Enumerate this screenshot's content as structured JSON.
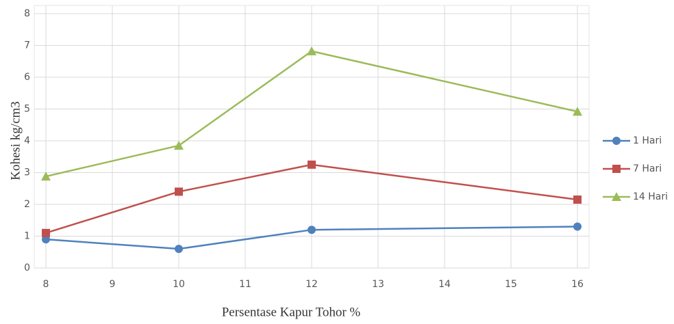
{
  "chart_data": {
    "type": "line",
    "x_label": "Persentase Kapur Tohor %",
    "y_label": "Kohesi kg/cm3",
    "x": [
      8,
      10,
      12,
      16
    ],
    "series": [
      {
        "name": "1 Hari",
        "color": "#4f81bd",
        "marker": "circle",
        "values": [
          0.9,
          0.6,
          1.2,
          1.3
        ]
      },
      {
        "name": "7 Hari",
        "color": "#c0504d",
        "marker": "square",
        "values": [
          1.1,
          2.4,
          3.25,
          2.15
        ]
      },
      {
        "name": "14 Hari",
        "color": "#9bbb59",
        "marker": "triangle",
        "values": [
          2.88,
          3.85,
          6.82,
          4.92
        ]
      }
    ],
    "xlim": [
      8,
      16
    ],
    "xticks": [
      8,
      9,
      10,
      11,
      12,
      13,
      14,
      15,
      16
    ],
    "ylim": [
      0,
      8
    ],
    "yticks": [
      0,
      1,
      2,
      3,
      4,
      5,
      6,
      7,
      8
    ],
    "grid": true,
    "legend": "right"
  }
}
